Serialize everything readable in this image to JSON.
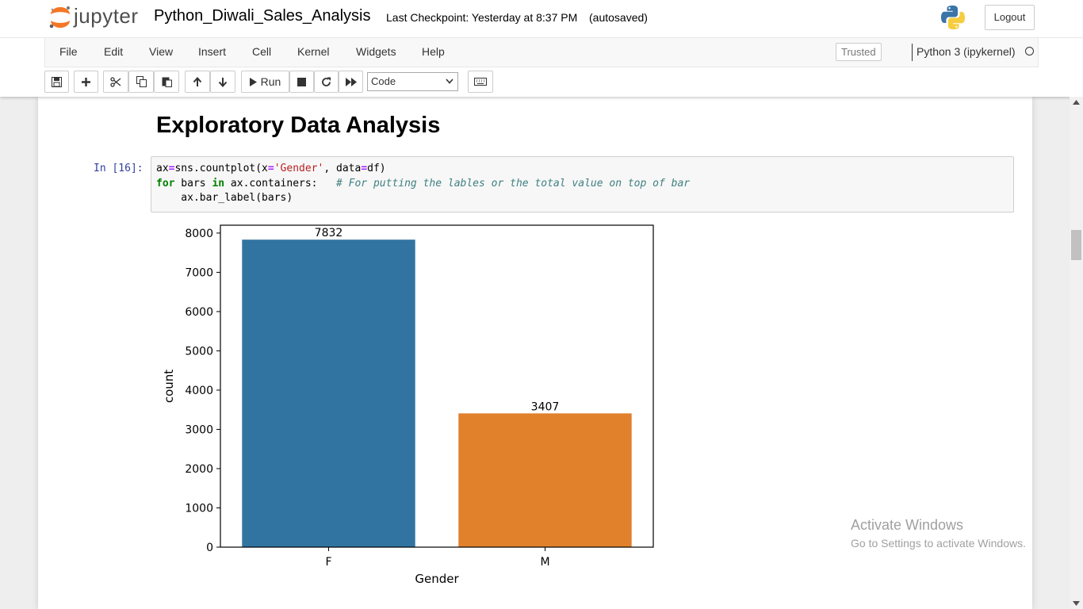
{
  "header": {
    "logo_text": "jupyter",
    "notebook_title": "Python_Diwali_Sales_Analysis",
    "checkpoint": "Last Checkpoint: Yesterday at 8:37 PM",
    "autosave": "(autosaved)",
    "logout_label": "Logout"
  },
  "menu": {
    "items": [
      "File",
      "Edit",
      "View",
      "Insert",
      "Cell",
      "Kernel",
      "Widgets",
      "Help"
    ],
    "trusted": "Trusted",
    "kernel": "Python 3 (ipykernel)"
  },
  "toolbar": {
    "run_label": "Run",
    "cell_type": "Code",
    "buttons": [
      "save-icon",
      "plus-icon",
      "cut-icon",
      "copy-icon",
      "paste-icon",
      "arrow-up-icon",
      "arrow-down-icon",
      "run-icon",
      "stop-icon",
      "restart-icon",
      "fast-forward-icon",
      "keyboard-icon"
    ]
  },
  "notebook": {
    "heading": "Exploratory Data Analysis",
    "prompt": "In [16]:",
    "code_lines": [
      "ax=sns.countplot(x='Gender', data=df)",
      "for bars in ax.containers:   # For putting the lables or the total value on top of bar",
      "    ax.bar_label(bars)"
    ]
  },
  "chart_data": {
    "type": "bar",
    "categories": [
      "F",
      "M"
    ],
    "values": [
      7832,
      3407
    ],
    "data_labels": [
      "7832",
      "3407"
    ],
    "colors": [
      "#3274a1",
      "#e1812c"
    ],
    "xlabel": "Gender",
    "ylabel": "count",
    "ylim": [
      0,
      8200
    ],
    "yticks": [
      0,
      1000,
      2000,
      3000,
      4000,
      5000,
      6000,
      7000,
      8000
    ],
    "grid": false
  },
  "watermark": {
    "title": "Activate Windows",
    "subtitle": "Go to Settings to activate Windows."
  }
}
